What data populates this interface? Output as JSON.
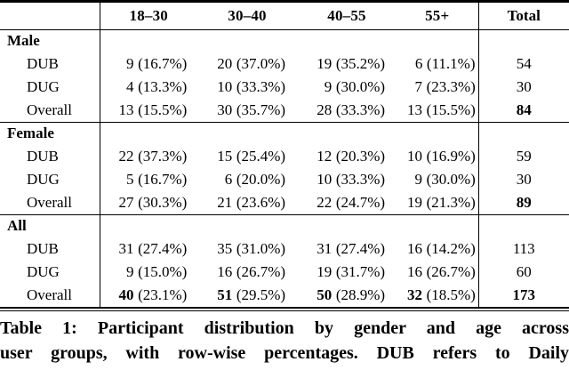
{
  "table": {
    "header": {
      "age_columns": [
        "18–30",
        "30–40",
        "40–55",
        "55+"
      ],
      "total": "Total"
    },
    "sections": [
      {
        "label": "Male",
        "rows": [
          {
            "label": "DUB",
            "counts": [
              "9",
              "20",
              "19",
              "6"
            ],
            "pcts": [
              "(16.7%)",
              "(37.0%)",
              "(35.2%)",
              "(11.1%)"
            ],
            "total": "54"
          },
          {
            "label": "DUG",
            "counts": [
              "4",
              "10",
              "9",
              "7"
            ],
            "pcts": [
              "(13.3%)",
              "(33.3%)",
              "(30.0%)",
              "(23.3%)"
            ],
            "total": "30"
          },
          {
            "label": "Overall",
            "counts": [
              "13",
              "30",
              "28",
              "13"
            ],
            "pcts": [
              "(15.5%)",
              "(35.7%)",
              "(33.3%)",
              "(15.5%)"
            ],
            "total": "84"
          }
        ]
      },
      {
        "label": "Female",
        "rows": [
          {
            "label": "DUB",
            "counts": [
              "22",
              "15",
              "12",
              "10"
            ],
            "pcts": [
              "(37.3%)",
              "(25.4%)",
              "(20.3%)",
              "(16.9%)"
            ],
            "total": "59"
          },
          {
            "label": "DUG",
            "counts": [
              "5",
              "6",
              "10",
              "9"
            ],
            "pcts": [
              "(16.7%)",
              "(20.0%)",
              "(33.3%)",
              "(30.0%)"
            ],
            "total": "30"
          },
          {
            "label": "Overall",
            "counts": [
              "27",
              "21",
              "22",
              "19"
            ],
            "pcts": [
              "(30.3%)",
              "(23.6%)",
              "(24.7%)",
              "(21.3%)"
            ],
            "total": "89"
          }
        ]
      },
      {
        "label": "All",
        "rows": [
          {
            "label": "DUB",
            "counts": [
              "31",
              "35",
              "31",
              "16"
            ],
            "pcts": [
              "(27.4%)",
              "(31.0%)",
              "(27.4%)",
              "(14.2%)"
            ],
            "total": "113"
          },
          {
            "label": "DUG",
            "counts": [
              "9",
              "16",
              "19",
              "16"
            ],
            "pcts": [
              "(15.0%)",
              "(26.7%)",
              "(31.7%)",
              "(26.7%)"
            ],
            "total": "60"
          },
          {
            "label": "Overall",
            "counts": [
              "40",
              "51",
              "50",
              "32"
            ],
            "pcts": [
              "(23.1%)",
              "(29.5%)",
              "(28.9%)",
              "(18.5%)"
            ],
            "total": "173"
          }
        ]
      }
    ]
  },
  "caption": {
    "line1": "Table 1: Participant distribution by gender and age across",
    "line2": "user groups, with row-wise percentages. DUB refers to Daily"
  }
}
